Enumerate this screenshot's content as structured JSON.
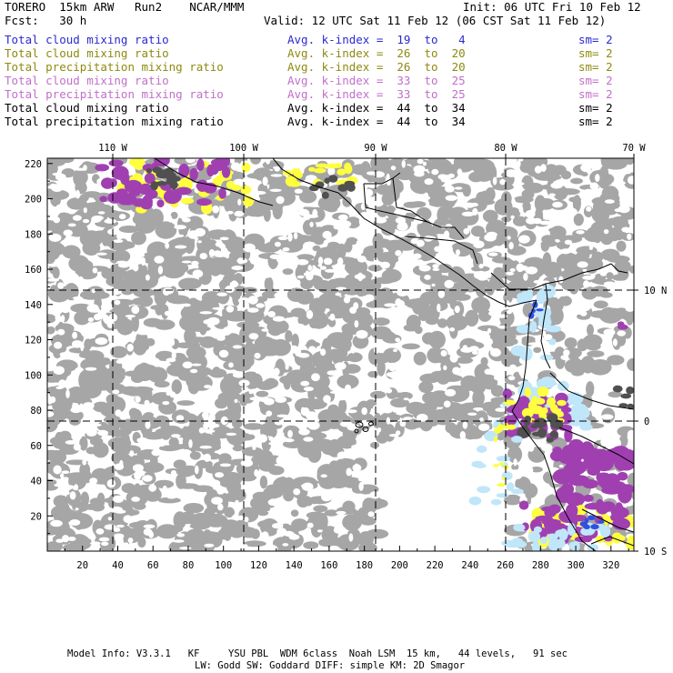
{
  "header": {
    "left1": "TORERO  15km ARW   Run2    NCAR/MMM",
    "right1": "Init: 06 UTC Fri 10 Feb 12",
    "left2": "Fcst:   30 h",
    "right2": "Valid: 12 UTC Sat 11 Feb 12 (06 CST Sat 11 Feb 12)"
  },
  "fields": [
    {
      "name": "Total cloud mixing ratio",
      "avg": "Avg. k-index =  19  to   4",
      "sm": "sm= 2",
      "color": "#2a2ad0"
    },
    {
      "name": "Total cloud mixing ratio",
      "avg": "Avg. k-index =  26  to  20",
      "sm": "sm= 2",
      "color": "#8f8a10"
    },
    {
      "name": "Total precipitation mixing ratio",
      "avg": "Avg. k-index =  26  to  20",
      "sm": "sm= 2",
      "color": "#8f8a10"
    },
    {
      "name": "Total cloud mixing ratio",
      "avg": "Avg. k-index =  33  to  25",
      "sm": "sm= 2",
      "color": "#c070c8"
    },
    {
      "name": "Total precipitation mixing ratio",
      "avg": "Avg. k-index =  33  to  25",
      "sm": "sm= 2",
      "color": "#c070c8"
    },
    {
      "name": "Total cloud mixing ratio",
      "avg": "Avg. k-index =  44  to  34",
      "sm": "sm= 2",
      "color": "#000000"
    },
    {
      "name": "Total precipitation mixing ratio",
      "avg": "Avg. k-index =  44  to  34",
      "sm": "sm= 2",
      "color": "#000000"
    }
  ],
  "map": {
    "top_labels": [
      "110 W",
      "100 W",
      "90 W",
      "80 W",
      "70 W"
    ],
    "right_labels": [
      "10 N",
      "0",
      "10 S"
    ],
    "y_ticks": [
      "20",
      "40",
      "60",
      "80",
      "100",
      "120",
      "140",
      "160",
      "180",
      "200",
      "220"
    ],
    "x_ticks": [
      "20",
      "40",
      "60",
      "80",
      "100",
      "120",
      "140",
      "160",
      "180",
      "200",
      "220",
      "240",
      "260",
      "280",
      "300",
      "320"
    ],
    "colors": {
      "cloud_gray": "#a6a6a6",
      "dark": "#505050",
      "yellow": "#ffff40",
      "magenta": "#a040b0",
      "lightblue": "#c0e6fa",
      "blue": "#3050e0"
    }
  },
  "footer": {
    "line1": "Model Info: V3.3.1   KF     YSU PBL  WDM 6class  Noah LSM  15 km,   44 levels,   91 sec",
    "line2": "LW: Godd SW: Goddard DIFF: simple KM: 2D Smagor"
  }
}
